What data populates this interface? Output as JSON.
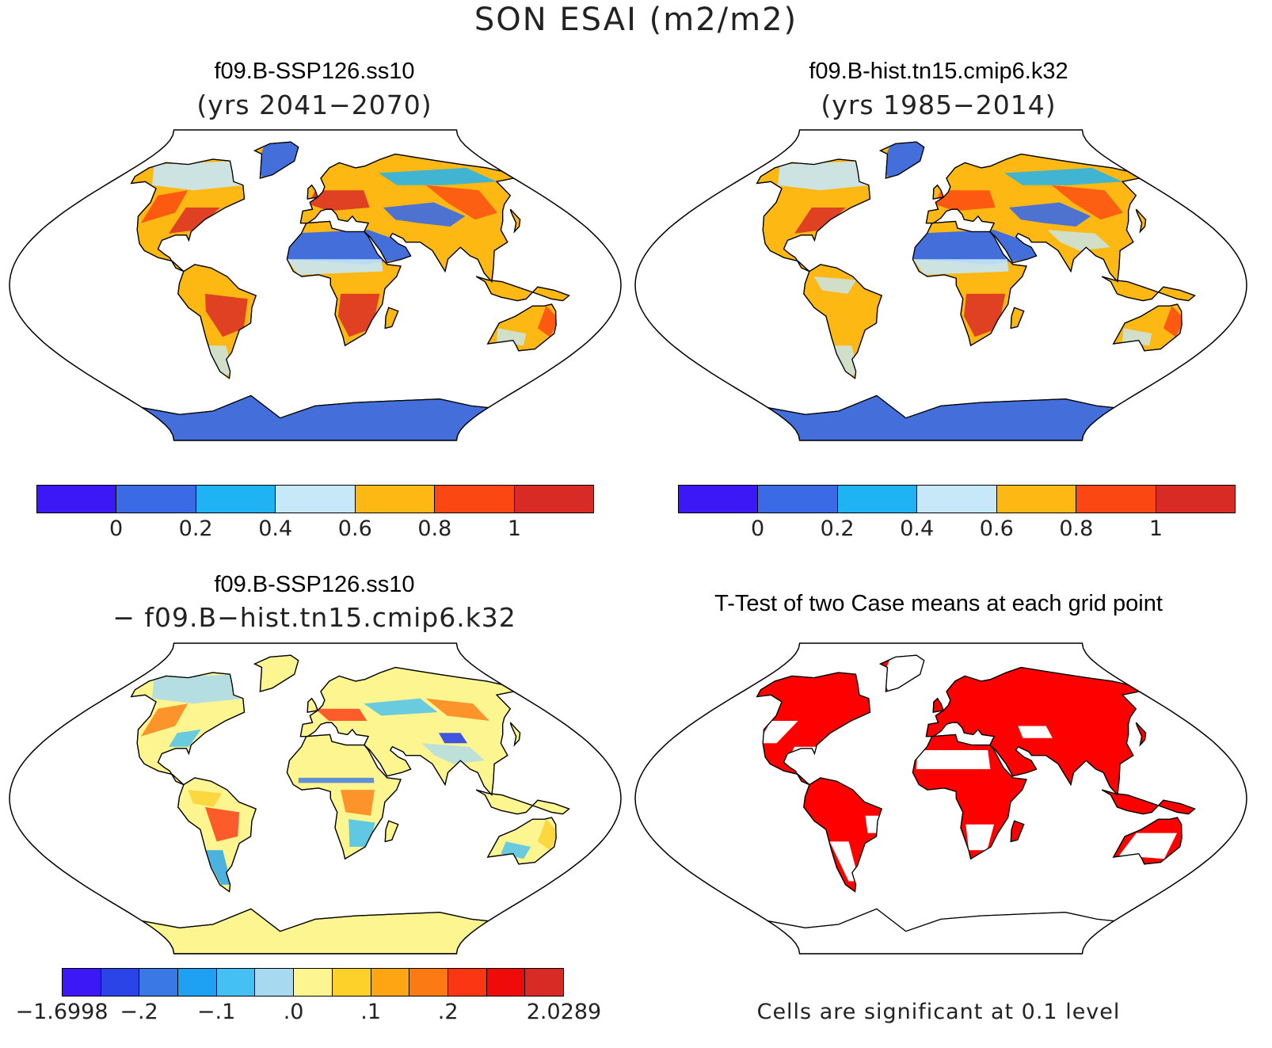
{
  "figure": {
    "title": "SON ESAI (m2/m2)"
  },
  "panels": {
    "future": {
      "title": "f09.B-SSP126.ss10",
      "subtitle": "(yrs 2041−2070)"
    },
    "hist": {
      "title": "f09.B-hist.tn15.cmip6.k32",
      "subtitle": "(yrs 1985−2014)"
    },
    "diff": {
      "title": "f09.B-SSP126.ss10",
      "subtitle": "− f09.B−hist.tn15.cmip6.k32"
    },
    "ttest": {
      "title": "T-Test of two Case means at each grid point",
      "note": "Cells are significant at 0.1 level",
      "significant_color": "#ff0000"
    }
  },
  "colorbars": {
    "abs": {
      "colors": [
        "#3b18f5",
        "#3a6ae6",
        "#1fb3f3",
        "#c6e8f8",
        "#fdb813",
        "#fb4812",
        "#d92b26"
      ],
      "labels": [
        "0",
        "0.2",
        "0.4",
        "0.6",
        "0.8",
        "1"
      ]
    },
    "diff": {
      "colors": [
        "#3b18f5",
        "#2a44e8",
        "#3a78e6",
        "#1ea1f2",
        "#45c0f3",
        "#a7d9f1",
        "#fdf590",
        "#fdd02a",
        "#fda513",
        "#fb7a11",
        "#fb3612",
        "#f00b0b",
        "#d92b26"
      ],
      "labels": [
        "−1.6998",
        "−.2",
        "−.1",
        ".0",
        ".1",
        ".2",
        "2.0289"
      ]
    }
  }
}
